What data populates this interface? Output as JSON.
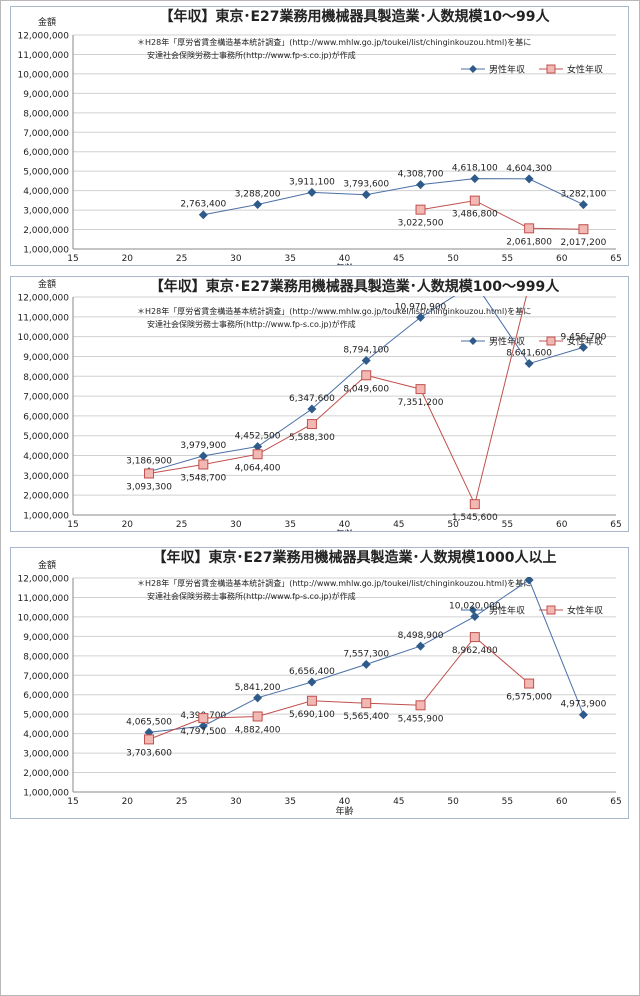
{
  "chart_data": [
    {
      "type": "line",
      "title": "【年収】東京･E27業務用機械器具製造業･人数規模10～99人",
      "note_line1": "＊H28年「厚労省賃金構造基本統計調査」(http://www.mhlw.go.jp/toukei/list/chinginkouzou.html)を基に",
      "note_line2": "安達社会保険労務士事務所(http://www.fp-s.co.jp)が作成",
      "ylabel": "金額",
      "xlabel": "年齢",
      "xlim": [
        15,
        65
      ],
      "ylim": [
        1000000,
        12000000
      ],
      "x_ticks": [
        "15",
        "20",
        "25",
        "30",
        "35",
        "40",
        "45",
        "50",
        "55",
        "60",
        "65"
      ],
      "y_ticks": [
        "1,000,000",
        "2,000,000",
        "3,000,000",
        "4,000,000",
        "5,000,000",
        "6,000,000",
        "7,000,000",
        "8,000,000",
        "9,000,000",
        "10,000,000",
        "11,000,000",
        "12,000,000"
      ],
      "grid": true,
      "legend_position": "top-right",
      "series": [
        {
          "name": "男性年収",
          "color": "#4a6fa5",
          "marker": "diamond",
          "x": [
            27,
            32,
            37,
            42,
            47,
            52,
            57,
            62
          ],
          "values": [
            2763400,
            3288200,
            3911100,
            3793600,
            4308700,
            4618100,
            4604300,
            3282100
          ],
          "labels": [
            "2,763,400",
            "3,288,200",
            "3,911,100",
            "3,793,600",
            "4,308,700",
            "4,618,100",
            "4,604,300",
            "3,282,100"
          ]
        },
        {
          "name": "女性年収",
          "color": "#c0504d",
          "marker": "square",
          "x": [
            47,
            52,
            57,
            62
          ],
          "values": [
            3022500,
            3486800,
            2061800,
            2017200
          ],
          "labels": [
            "3,022,500",
            "3,486,800",
            "2,061,800",
            "2,017,200"
          ]
        }
      ]
    },
    {
      "type": "line",
      "title": "【年収】東京･E27業務用機械器具製造業･人数規模100～999人",
      "note_line1": "＊H28年「厚労省賃金構造基本統計調査」(http://www.mhlw.go.jp/toukei/list/chinginkouzou.html)を基に",
      "note_line2": "安達社会保険労務士事務所(http://www.fp-s.co.jp)が作成",
      "ylabel": "金額",
      "xlabel": "年齢",
      "xlim": [
        15,
        65
      ],
      "ylim": [
        1000000,
        12000000
      ],
      "x_ticks": [
        "15",
        "20",
        "25",
        "30",
        "35",
        "40",
        "45",
        "50",
        "55",
        "60",
        "65"
      ],
      "y_ticks": [
        "1,000,000",
        "2,000,000",
        "3,000,000",
        "4,000,000",
        "5,000,000",
        "6,000,000",
        "7,000,000",
        "8,000,000",
        "9,000,000",
        "10,000,000",
        "11,000,000",
        "12,000,000"
      ],
      "grid": true,
      "legend_position": "top-right",
      "series": [
        {
          "name": "男性年収",
          "color": "#4a6fa5",
          "marker": "diamond",
          "x": [
            22,
            27,
            32,
            37,
            42,
            47,
            52,
            57,
            62
          ],
          "values": [
            3186900,
            3979900,
            4452500,
            6347600,
            8794100,
            10970900,
            12700000,
            8641600,
            9456700
          ],
          "labels": [
            "3,186,900",
            "3,979,900",
            "4,452,500",
            "6,347,600",
            "8,794,100",
            "10,970,900",
            "",
            "8,641,600",
            "9,456,700"
          ]
        },
        {
          "name": "女性年収",
          "color": "#c0504d",
          "marker": "square",
          "x": [
            22,
            27,
            32,
            37,
            42,
            47,
            52,
            57
          ],
          "values": [
            3093300,
            3548700,
            4064400,
            5588300,
            8049600,
            7351200,
            1545600,
            12600000
          ],
          "labels": [
            "3,093,300",
            "3,548,700",
            "4,064,400",
            "5,588,300",
            "8,049,600",
            "7,351,200",
            "1,545,600",
            ""
          ]
        }
      ]
    },
    {
      "type": "line",
      "title": "【年収】東京･E27業務用機械器具製造業･人数規模1000人以上",
      "note_line1": "＊H28年「厚労省賃金構造基本統計調査」(http://www.mhlw.go.jp/toukei/list/chinginkouzou.html)を基に",
      "note_line2": "安達社会保険労務士事務所(http://www.fp-s.co.jp)が作成",
      "ylabel": "金額",
      "xlabel": "年齢",
      "xlim": [
        15,
        65
      ],
      "ylim": [
        1000000,
        12000000
      ],
      "x_ticks": [
        "15",
        "20",
        "25",
        "30",
        "35",
        "40",
        "45",
        "50",
        "55",
        "60",
        "65"
      ],
      "y_ticks": [
        "1,000,000",
        "2,000,000",
        "3,000,000",
        "4,000,000",
        "5,000,000",
        "6,000,000",
        "7,000,000",
        "8,000,000",
        "9,000,000",
        "10,000,000",
        "11,000,000",
        "12,000,000"
      ],
      "grid": true,
      "legend_position": "top-right",
      "series": [
        {
          "name": "男性年収",
          "color": "#4a6fa5",
          "marker": "diamond",
          "x": [
            22,
            27,
            32,
            37,
            42,
            47,
            52,
            57,
            62
          ],
          "values": [
            4065500,
            4390700,
            5841200,
            6656400,
            7557300,
            8498900,
            10020000,
            11900000,
            4973900
          ],
          "labels": [
            "4,065,500",
            "4,390,700",
            "5,841,200",
            "6,656,400",
            "7,557,300",
            "8,498,900",
            "10,020,000",
            "",
            "4,973,900"
          ]
        },
        {
          "name": "女性年収",
          "color": "#c0504d",
          "marker": "square",
          "x": [
            22,
            27,
            32,
            37,
            42,
            47,
            52,
            57
          ],
          "values": [
            3703600,
            4797500,
            4882400,
            5690100,
            5565400,
            5455900,
            8962400,
            6575000
          ],
          "labels": [
            "3,703,600",
            "4,797,500",
            "4,882,400",
            "5,690,100",
            "5,565,400",
            "5,455,900",
            "8,962,400",
            "6,575,000"
          ]
        }
      ]
    }
  ]
}
